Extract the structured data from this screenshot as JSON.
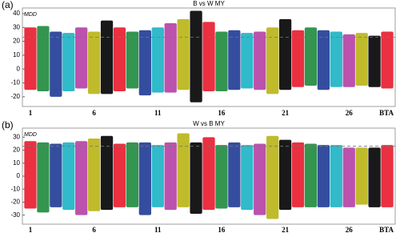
{
  "chart_data": [
    {
      "type": "range",
      "panel_label": "(a)",
      "title": "B vs W MY",
      "y_label": "MDD",
      "x_label": "BTA",
      "categories": [
        "1",
        null,
        null,
        null,
        null,
        "6",
        null,
        null,
        null,
        null,
        "11",
        null,
        null,
        null,
        null,
        "16",
        null,
        null,
        null,
        null,
        "21",
        null,
        null,
        null,
        null,
        "26",
        null,
        null,
        null
      ],
      "palette": [
        "#e8192c",
        "#1d8a3c",
        "#1f3a93",
        "#19b3c4",
        "#b43fa5",
        "#b9b414",
        "#000000"
      ],
      "high": [
        30,
        31,
        27,
        26,
        30,
        27,
        35,
        30,
        27,
        28,
        30,
        33,
        36,
        42,
        34,
        27,
        28,
        26,
        27,
        30,
        36,
        28,
        30,
        28,
        27,
        25,
        26,
        24,
        27
      ],
      "low": [
        -15,
        -16,
        -20,
        -16,
        -14,
        -18,
        -18,
        -16,
        -14,
        -19,
        -17,
        -17,
        -15,
        -24,
        -16,
        -16,
        -15,
        -14,
        -15,
        -18,
        -15,
        -13,
        -12,
        -15,
        -13,
        -13,
        -12,
        -13,
        -14
      ],
      "threshold": 23,
      "ylim": [
        -27,
        44
      ],
      "yticks": [
        -20,
        -10,
        0,
        10,
        20,
        30,
        40
      ]
    },
    {
      "type": "range",
      "panel_label": "(b)",
      "title": "W vs B MY",
      "y_label": "MDD",
      "x_label": "BTA",
      "categories": [
        "1",
        null,
        null,
        null,
        null,
        "6",
        null,
        null,
        null,
        null,
        "11",
        null,
        null,
        null,
        null,
        "16",
        null,
        null,
        null,
        null,
        "21",
        null,
        null,
        null,
        null,
        "26",
        null,
        null,
        null
      ],
      "palette": [
        "#e8192c",
        "#1d8a3c",
        "#1f3a93",
        "#19b3c4",
        "#b43fa5",
        "#b9b414",
        "#000000"
      ],
      "high": [
        27,
        26,
        25,
        26,
        27,
        29,
        31,
        25,
        26,
        26,
        24,
        26,
        33,
        26,
        30,
        24,
        26,
        24,
        25,
        31,
        28,
        26,
        25,
        24,
        24,
        22,
        22,
        22,
        24
      ],
      "low": [
        -25,
        -28,
        -24,
        -26,
        -30,
        -27,
        -26,
        -24,
        -24,
        -30,
        -24,
        -26,
        -24,
        -29,
        -26,
        -25,
        -24,
        -26,
        -30,
        -33,
        -26,
        -24,
        -24,
        -24,
        -24,
        -24,
        -22,
        -24,
        -24
      ],
      "threshold": 23,
      "ylim": [
        -37,
        37
      ],
      "yticks": [
        -30,
        -20,
        -10,
        0,
        10,
        20,
        30
      ]
    }
  ]
}
